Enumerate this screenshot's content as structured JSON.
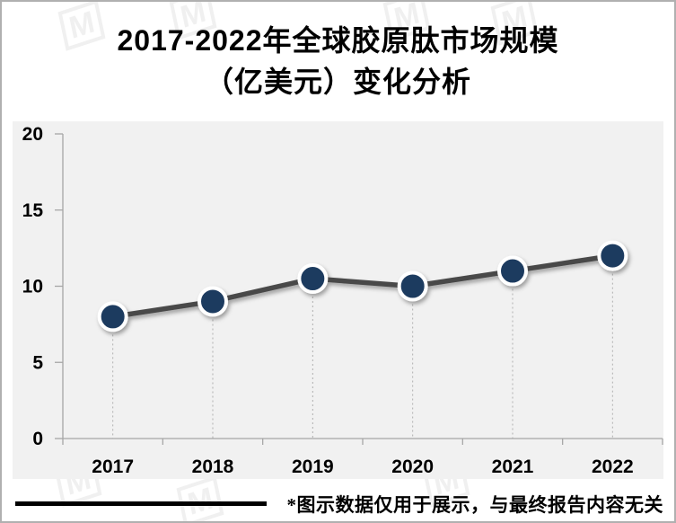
{
  "page": {
    "title_line1": "2017-2022年全球胶原肽市场规模",
    "title_line2": "（亿美元）变化分析",
    "footnote": "*图示数据仅用于展示，与最终报告内容无关",
    "watermark_glyph": "M"
  },
  "chart_data": {
    "type": "line",
    "title": "2017-2022年全球胶原肽市场规模（亿美元）变化分析",
    "categories": [
      "2017",
      "2018",
      "2019",
      "2020",
      "2021",
      "2022"
    ],
    "values": [
      8,
      9,
      10.5,
      10,
      11,
      12
    ],
    "xlabel": "",
    "ylabel": "",
    "ylim": [
      0,
      20
    ],
    "yticks": [
      0,
      5,
      10,
      15,
      20
    ],
    "grid": false,
    "legend": false,
    "marker_droplines": true,
    "colors": {
      "point_fill": "#1f3a5e",
      "point_ring": "#ffffff",
      "line": "#4a4a4a",
      "plot_bg": "#f1f1f1",
      "axis": "#a6a6a6",
      "dropline": "#b0b0b0",
      "tick_label": "#000000"
    }
  }
}
